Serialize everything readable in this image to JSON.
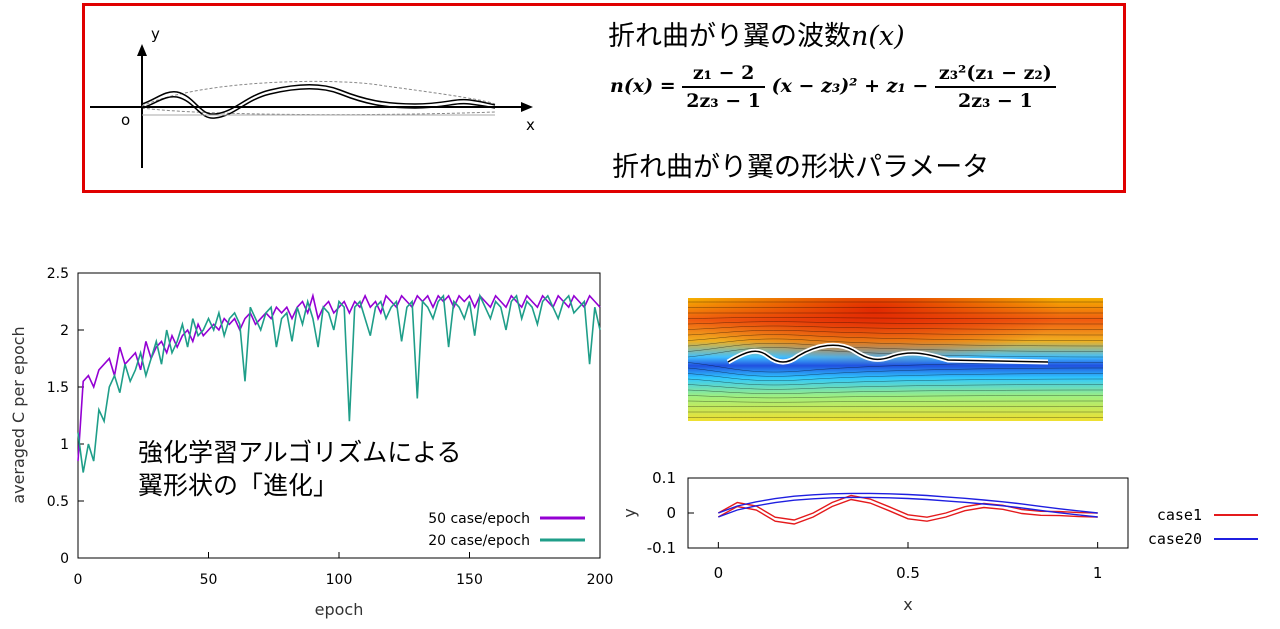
{
  "header_box": {
    "title_wavenumber": "折れ曲がり翼の波数",
    "title_wavenumber_math": "n(x)",
    "title_shape": "折れ曲がり翼の形状パラメータ",
    "formula": {
      "lhs": "n(x) =",
      "frac1_num": "z₁ − 2",
      "frac1_den": "2z₃ − 1",
      "middle": "(x − z₃)² + z₁ −",
      "frac2_num": "z₃²(z₁ − z₂)",
      "frac2_den": "2z₃ − 1"
    },
    "sketch": {
      "x_label": "x",
      "y_label": "y",
      "origin_label": "o"
    }
  },
  "annotation": {
    "line1": "強化学習アルゴリズムによる",
    "line2": "翼形状の「進化」"
  },
  "colors": {
    "box_border": "#e00000",
    "series50": "#9400d3",
    "series20": "#1f9e89",
    "case1": "#e41a1c",
    "case20": "#1f1fe0"
  },
  "chart_data": [
    {
      "type": "line",
      "title": "",
      "xlabel": "epoch",
      "ylabel": "averaged C per epoch",
      "xlim": [
        0,
        200
      ],
      "ylim": [
        0,
        2.5
      ],
      "xticks": [
        "0",
        "50",
        "100",
        "150",
        "200"
      ],
      "yticks": [
        "0",
        "0.5",
        "1",
        "1.5",
        "2",
        "2.5"
      ],
      "legend_position": "bottom-right",
      "series": [
        {
          "name": "50 case/epoch",
          "x": [
            0,
            2,
            4,
            6,
            8,
            10,
            12,
            14,
            16,
            18,
            20,
            22,
            24,
            26,
            28,
            30,
            32,
            34,
            36,
            38,
            40,
            42,
            44,
            46,
            48,
            50,
            52,
            54,
            56,
            58,
            60,
            62,
            64,
            66,
            68,
            70,
            72,
            74,
            76,
            78,
            80,
            82,
            84,
            86,
            88,
            90,
            92,
            94,
            96,
            98,
            100,
            102,
            104,
            106,
            108,
            110,
            112,
            114,
            116,
            118,
            120,
            122,
            124,
            126,
            128,
            130,
            132,
            134,
            136,
            138,
            140,
            142,
            144,
            146,
            148,
            150,
            152,
            154,
            156,
            158,
            160,
            162,
            164,
            166,
            168,
            170,
            172,
            174,
            176,
            178,
            180,
            182,
            184,
            186,
            188,
            190,
            192,
            194,
            196,
            198,
            200
          ],
          "y": [
            0.85,
            1.55,
            1.6,
            1.5,
            1.65,
            1.7,
            1.75,
            1.6,
            1.85,
            1.7,
            1.75,
            1.8,
            1.65,
            1.9,
            1.75,
            1.85,
            1.9,
            1.8,
            1.95,
            1.85,
            1.95,
            2.0,
            1.9,
            2.05,
            1.95,
            2.0,
            2.05,
            2.0,
            2.1,
            2.05,
            2.1,
            2.0,
            2.1,
            2.15,
            2.05,
            2.1,
            2.15,
            2.1,
            2.2,
            2.15,
            2.2,
            2.1,
            2.2,
            2.25,
            2.15,
            2.3,
            2.1,
            2.2,
            2.25,
            2.15,
            2.2,
            2.25,
            2.15,
            2.25,
            2.2,
            2.3,
            2.2,
            2.25,
            2.15,
            2.3,
            2.25,
            2.2,
            2.3,
            2.25,
            2.2,
            2.3,
            2.25,
            2.3,
            2.2,
            2.3,
            2.25,
            2.3,
            2.2,
            2.3,
            2.25,
            2.3,
            2.2,
            2.3,
            2.25,
            2.2,
            2.3,
            2.25,
            2.2,
            2.3,
            2.25,
            2.2,
            2.3,
            2.25,
            2.2,
            2.3,
            2.25,
            2.2,
            2.3,
            2.25,
            2.2,
            2.3,
            2.25,
            2.2,
            2.3,
            2.25,
            2.2
          ]
        },
        {
          "name": "20 case/epoch",
          "x": [
            0,
            2,
            4,
            6,
            8,
            10,
            12,
            14,
            16,
            18,
            20,
            22,
            24,
            26,
            28,
            30,
            32,
            34,
            36,
            38,
            40,
            42,
            44,
            46,
            48,
            50,
            52,
            54,
            56,
            58,
            60,
            62,
            64,
            66,
            68,
            70,
            72,
            74,
            76,
            78,
            80,
            82,
            84,
            86,
            88,
            90,
            92,
            94,
            96,
            98,
            100,
            102,
            104,
            106,
            108,
            110,
            112,
            114,
            116,
            118,
            120,
            122,
            124,
            126,
            128,
            130,
            132,
            134,
            136,
            138,
            140,
            142,
            144,
            146,
            148,
            150,
            152,
            154,
            156,
            158,
            160,
            162,
            164,
            166,
            168,
            170,
            172,
            174,
            176,
            178,
            180,
            182,
            184,
            186,
            188,
            190,
            192,
            194,
            196,
            198,
            200
          ],
          "y": [
            1.1,
            0.75,
            1.0,
            0.85,
            1.3,
            1.2,
            1.5,
            1.6,
            1.45,
            1.7,
            1.55,
            1.65,
            1.8,
            1.6,
            1.75,
            1.9,
            1.7,
            2.0,
            1.8,
            1.9,
            2.05,
            1.85,
            2.1,
            1.95,
            2.0,
            2.1,
            2.0,
            2.15,
            1.95,
            2.1,
            2.15,
            2.05,
            1.55,
            2.2,
            2.1,
            2.0,
            2.15,
            2.2,
            1.85,
            2.1,
            2.15,
            1.9,
            2.2,
            2.05,
            2.25,
            2.1,
            1.85,
            2.2,
            2.15,
            2.0,
            2.25,
            2.2,
            1.2,
            2.2,
            2.25,
            2.1,
            1.95,
            2.2,
            2.25,
            2.1,
            2.2,
            2.25,
            1.9,
            2.2,
            2.25,
            1.4,
            2.25,
            2.2,
            2.1,
            2.25,
            2.3,
            1.85,
            2.25,
            2.2,
            2.1,
            2.25,
            1.95,
            2.3,
            2.2,
            2.1,
            2.25,
            2.2,
            2.0,
            2.25,
            2.3,
            2.1,
            2.25,
            2.2,
            2.05,
            2.25,
            2.3,
            2.2,
            2.1,
            2.25,
            2.3,
            2.15,
            2.2,
            2.25,
            1.7,
            2.2,
            2.0
          ]
        }
      ]
    },
    {
      "type": "line",
      "title": "",
      "xlabel": "x",
      "ylabel": "y",
      "xlim": [
        -0.08,
        1.08
      ],
      "ylim": [
        -0.1,
        0.1
      ],
      "xticks": [
        "0",
        "0.5",
        "1"
      ],
      "yticks": [
        "-0.1",
        "0",
        "0.1"
      ],
      "legend_position": "right",
      "series": [
        {
          "name": "case1",
          "x": [
            0,
            0.05,
            0.1,
            0.15,
            0.2,
            0.25,
            0.3,
            0.35,
            0.4,
            0.45,
            0.5,
            0.55,
            0.6,
            0.65,
            0.7,
            0.75,
            0.8,
            0.85,
            0.9,
            0.95,
            1.0
          ],
          "y": [
            0.0,
            0.03,
            0.02,
            -0.012,
            -0.02,
            0.0,
            0.03,
            0.05,
            0.04,
            0.018,
            -0.005,
            -0.012,
            0.0,
            0.018,
            0.027,
            0.022,
            0.01,
            0.005,
            0.004,
            0.001,
            0.0
          ]
        },
        {
          "name": "case20",
          "x": [
            0,
            0.05,
            0.1,
            0.15,
            0.2,
            0.25,
            0.3,
            0.35,
            0.4,
            0.45,
            0.5,
            0.55,
            0.6,
            0.65,
            0.7,
            0.75,
            0.8,
            0.85,
            0.9,
            0.95,
            1.0
          ],
          "y": [
            0.0,
            0.02,
            0.032,
            0.041,
            0.048,
            0.052,
            0.055,
            0.056,
            0.056,
            0.055,
            0.053,
            0.05,
            0.046,
            0.042,
            0.037,
            0.032,
            0.026,
            0.019,
            0.012,
            0.006,
            0.0
          ]
        }
      ]
    }
  ]
}
